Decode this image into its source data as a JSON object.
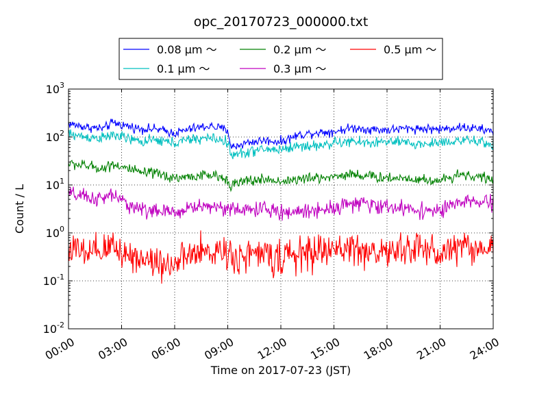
{
  "chart_data": {
    "type": "line",
    "title": "opc_20170723_000000.txt",
    "xlabel": "Time on 2017-07-23 (JST)",
    "ylabel": "Count / L",
    "xlim": [
      "00:00",
      "24:00"
    ],
    "x_tick_labels": [
      "00:00",
      "03:00",
      "06:00",
      "09:00",
      "12:00",
      "15:00",
      "18:00",
      "21:00",
      "24:00"
    ],
    "y_scale": "log",
    "ylim": [
      0.01,
      1000
    ],
    "y_ticks": [
      {
        "base": "10",
        "exp": "-2"
      },
      {
        "base": "10",
        "exp": "-1"
      },
      {
        "base": "10",
        "exp": "0"
      },
      {
        "base": "10",
        "exp": "1"
      },
      {
        "base": "10",
        "exp": "2"
      },
      {
        "base": "10",
        "exp": "3"
      }
    ],
    "grid": true,
    "legend_position": "top-center",
    "x_hours": [
      0,
      1,
      2,
      2.5,
      3,
      4,
      5,
      6,
      7,
      8,
      9,
      9.2,
      10,
      11,
      12,
      13,
      14,
      15,
      16,
      17,
      18,
      19,
      20,
      21,
      22,
      23,
      24
    ],
    "series": [
      {
        "name": "0.08 μm ～",
        "color": "#0000ff",
        "values": [
          190,
          160,
          150,
          200,
          180,
          150,
          145,
          120,
          150,
          170,
          140,
          60,
          75,
          85,
          80,
          110,
          125,
          130,
          155,
          145,
          140,
          150,
          150,
          145,
          160,
          150,
          130
        ]
      },
      {
        "name": "0.1 μm ～",
        "color": "#00bfbf",
        "values": [
          115,
          100,
          95,
          110,
          100,
          80,
          85,
          75,
          90,
          95,
          80,
          40,
          48,
          55,
          55,
          65,
          65,
          75,
          80,
          75,
          80,
          75,
          70,
          78,
          85,
          80,
          70
        ]
      },
      {
        "name": "0.2 μm ～",
        "color": "#008000",
        "values": [
          28,
          25,
          22,
          28,
          24,
          18,
          17,
          14,
          15,
          16,
          13,
          10,
          12,
          13,
          12,
          13,
          14,
          15,
          17,
          15,
          14,
          14,
          13,
          12,
          17,
          15,
          13
        ]
      },
      {
        "name": "0.3 μm ～",
        "color": "#bf00bf",
        "values": [
          6.5,
          5.5,
          5,
          6.5,
          4.5,
          3.2,
          2.8,
          2.6,
          3.5,
          3.6,
          3.4,
          3.0,
          3.0,
          3.2,
          2.6,
          2.8,
          3.0,
          3.4,
          4.2,
          3.8,
          3.5,
          3.2,
          3.0,
          2.8,
          4.2,
          4.5,
          4.0
        ]
      },
      {
        "name": "0.5 μm ～",
        "color": "#ff0000",
        "values": [
          0.5,
          0.35,
          0.4,
          0.6,
          0.4,
          0.3,
          0.25,
          0.22,
          0.35,
          0.4,
          0.45,
          0.3,
          0.35,
          0.35,
          0.3,
          0.35,
          0.4,
          0.45,
          0.5,
          0.4,
          0.38,
          0.45,
          0.5,
          0.35,
          0.55,
          0.5,
          0.45
        ]
      }
    ]
  }
}
